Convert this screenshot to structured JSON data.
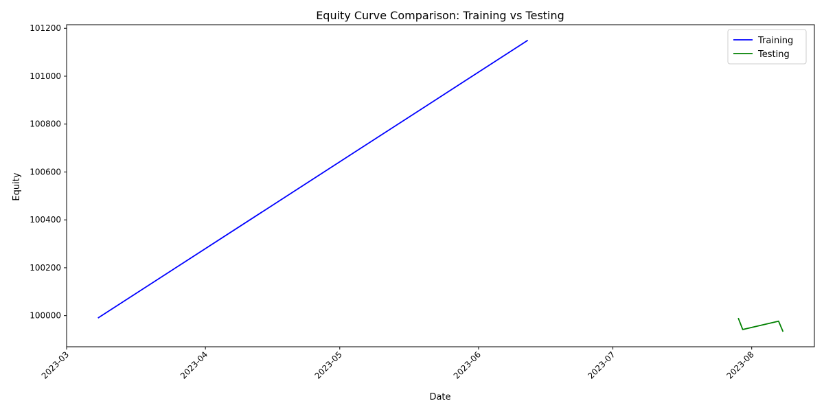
{
  "chart_data": {
    "type": "line",
    "title": "Equity Curve Comparison: Training vs Testing",
    "xlabel": "Date",
    "ylabel": "Equity",
    "x_axis_type": "date",
    "xlim": [
      "2023-03-01",
      "2023-08-15"
    ],
    "ylim": [
      99870,
      101215
    ],
    "x_ticks": [
      "2023-03",
      "2023-04",
      "2023-05",
      "2023-06",
      "2023-07",
      "2023-08"
    ],
    "x_tick_dates": [
      "2023-03-01",
      "2023-04-01",
      "2023-05-01",
      "2023-06-01",
      "2023-07-01",
      "2023-08-01"
    ],
    "y_ticks": [
      100000,
      100200,
      100400,
      100600,
      100800,
      101000,
      101200
    ],
    "grid": false,
    "legend_position": "top-right",
    "series": [
      {
        "name": "Training",
        "color": "#0000ff",
        "points": [
          {
            "x": "2023-03-08",
            "y": 99990
          },
          {
            "x": "2023-06-12",
            "y": 101150
          }
        ]
      },
      {
        "name": "Testing",
        "color": "#008000",
        "points": [
          {
            "x": "2023-07-29",
            "y": 99990
          },
          {
            "x": "2023-07-30",
            "y": 99942
          },
          {
            "x": "2023-08-07",
            "y": 99977
          },
          {
            "x": "2023-08-08",
            "y": 99933
          }
        ]
      }
    ]
  }
}
